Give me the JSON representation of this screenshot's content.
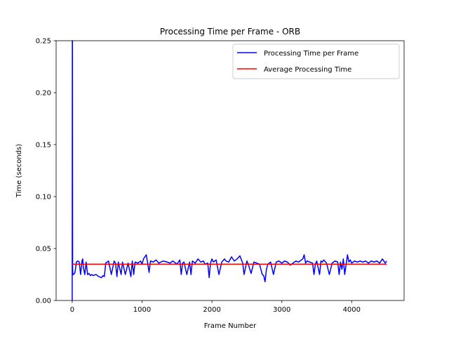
{
  "chart_data": {
    "type": "line",
    "title": "Processing Time per Frame - ORB",
    "xlabel": "Frame Number",
    "ylabel": "Time (seconds)",
    "xlim": [
      -230,
      4750
    ],
    "ylim": [
      0,
      0.25
    ],
    "x_ticks": [
      0,
      1000,
      2000,
      3000,
      4000
    ],
    "x_tick_labels": [
      "0",
      "1000",
      "2000",
      "3000",
      "4000"
    ],
    "y_ticks": [
      0.0,
      0.05,
      0.1,
      0.15,
      0.2,
      0.25
    ],
    "y_tick_labels": [
      "0.00",
      "0.05",
      "0.10",
      "0.15",
      "0.20",
      "0.25"
    ],
    "grid": false,
    "legend_position": "top-right",
    "series": [
      {
        "name": "Processing Time per Frame",
        "color": "#0000ff",
        "x": [
          0,
          2,
          4,
          6,
          10,
          20,
          40,
          60,
          80,
          100,
          120,
          140,
          150,
          160,
          180,
          200,
          220,
          240,
          260,
          280,
          300,
          340,
          380,
          420,
          440,
          460,
          480,
          520,
          560,
          600,
          620,
          640,
          660,
          700,
          720,
          760,
          800,
          840,
          860,
          880,
          900,
          940,
          980,
          1000,
          1020,
          1060,
          1080,
          1100,
          1120,
          1160,
          1200,
          1240,
          1300,
          1360,
          1400,
          1440,
          1500,
          1540,
          1560,
          1580,
          1600,
          1640,
          1680,
          1700,
          1720,
          1760,
          1800,
          1840,
          1880,
          1900,
          1940,
          1960,
          1980,
          2000,
          2020,
          2060,
          2100,
          2140,
          2180,
          2200,
          2240,
          2280,
          2320,
          2360,
          2400,
          2440,
          2460,
          2500,
          2520,
          2560,
          2600,
          2640,
          2680,
          2720,
          2740,
          2760,
          2780,
          2800,
          2840,
          2880,
          2920,
          2960,
          3000,
          3040,
          3080,
          3120,
          3160,
          3200,
          3240,
          3280,
          3300,
          3320,
          3340,
          3360,
          3400,
          3440,
          3460,
          3480,
          3500,
          3540,
          3560,
          3580,
          3600,
          3640,
          3680,
          3720,
          3760,
          3800,
          3820,
          3840,
          3860,
          3880,
          3900,
          3940,
          3960,
          3980,
          4000,
          4040,
          4080,
          4120,
          4160,
          4200,
          4240,
          4280,
          4320,
          4360,
          4400,
          4440,
          4480,
          4500
        ],
        "y": [
          0.0,
          0.25,
          0.25,
          0.03,
          0.025,
          0.025,
          0.027,
          0.037,
          0.038,
          0.037,
          0.025,
          0.038,
          0.04,
          0.032,
          0.025,
          0.037,
          0.025,
          0.026,
          0.024,
          0.025,
          0.024,
          0.025,
          0.023,
          0.022,
          0.024,
          0.023,
          0.036,
          0.038,
          0.025,
          0.038,
          0.036,
          0.023,
          0.037,
          0.025,
          0.037,
          0.025,
          0.036,
          0.023,
          0.038,
          0.025,
          0.037,
          0.036,
          0.038,
          0.035,
          0.04,
          0.044,
          0.036,
          0.027,
          0.038,
          0.037,
          0.039,
          0.036,
          0.038,
          0.037,
          0.036,
          0.038,
          0.035,
          0.039,
          0.025,
          0.036,
          0.037,
          0.025,
          0.037,
          0.025,
          0.038,
          0.036,
          0.04,
          0.037,
          0.038,
          0.035,
          0.036,
          0.022,
          0.036,
          0.04,
          0.037,
          0.039,
          0.025,
          0.037,
          0.04,
          0.038,
          0.037,
          0.042,
          0.038,
          0.04,
          0.043,
          0.036,
          0.025,
          0.038,
          0.035,
          0.026,
          0.037,
          0.036,
          0.035,
          0.025,
          0.024,
          0.018,
          0.03,
          0.035,
          0.037,
          0.025,
          0.037,
          0.038,
          0.036,
          0.038,
          0.037,
          0.034,
          0.036,
          0.038,
          0.037,
          0.039,
          0.04,
          0.044,
          0.036,
          0.038,
          0.037,
          0.036,
          0.025,
          0.035,
          0.038,
          0.025,
          0.038,
          0.037,
          0.039,
          0.036,
          0.025,
          0.036,
          0.038,
          0.037,
          0.025,
          0.037,
          0.03,
          0.04,
          0.025,
          0.044,
          0.037,
          0.039,
          0.036,
          0.038,
          0.037,
          0.038,
          0.037,
          0.038,
          0.036,
          0.038,
          0.037,
          0.038,
          0.036,
          0.04,
          0.036,
          0.038
        ]
      },
      {
        "name": "Average Processing Time",
        "color": "#ff0000",
        "x": [
          0,
          4500
        ],
        "y": [
          0.035,
          0.035
        ]
      }
    ]
  }
}
